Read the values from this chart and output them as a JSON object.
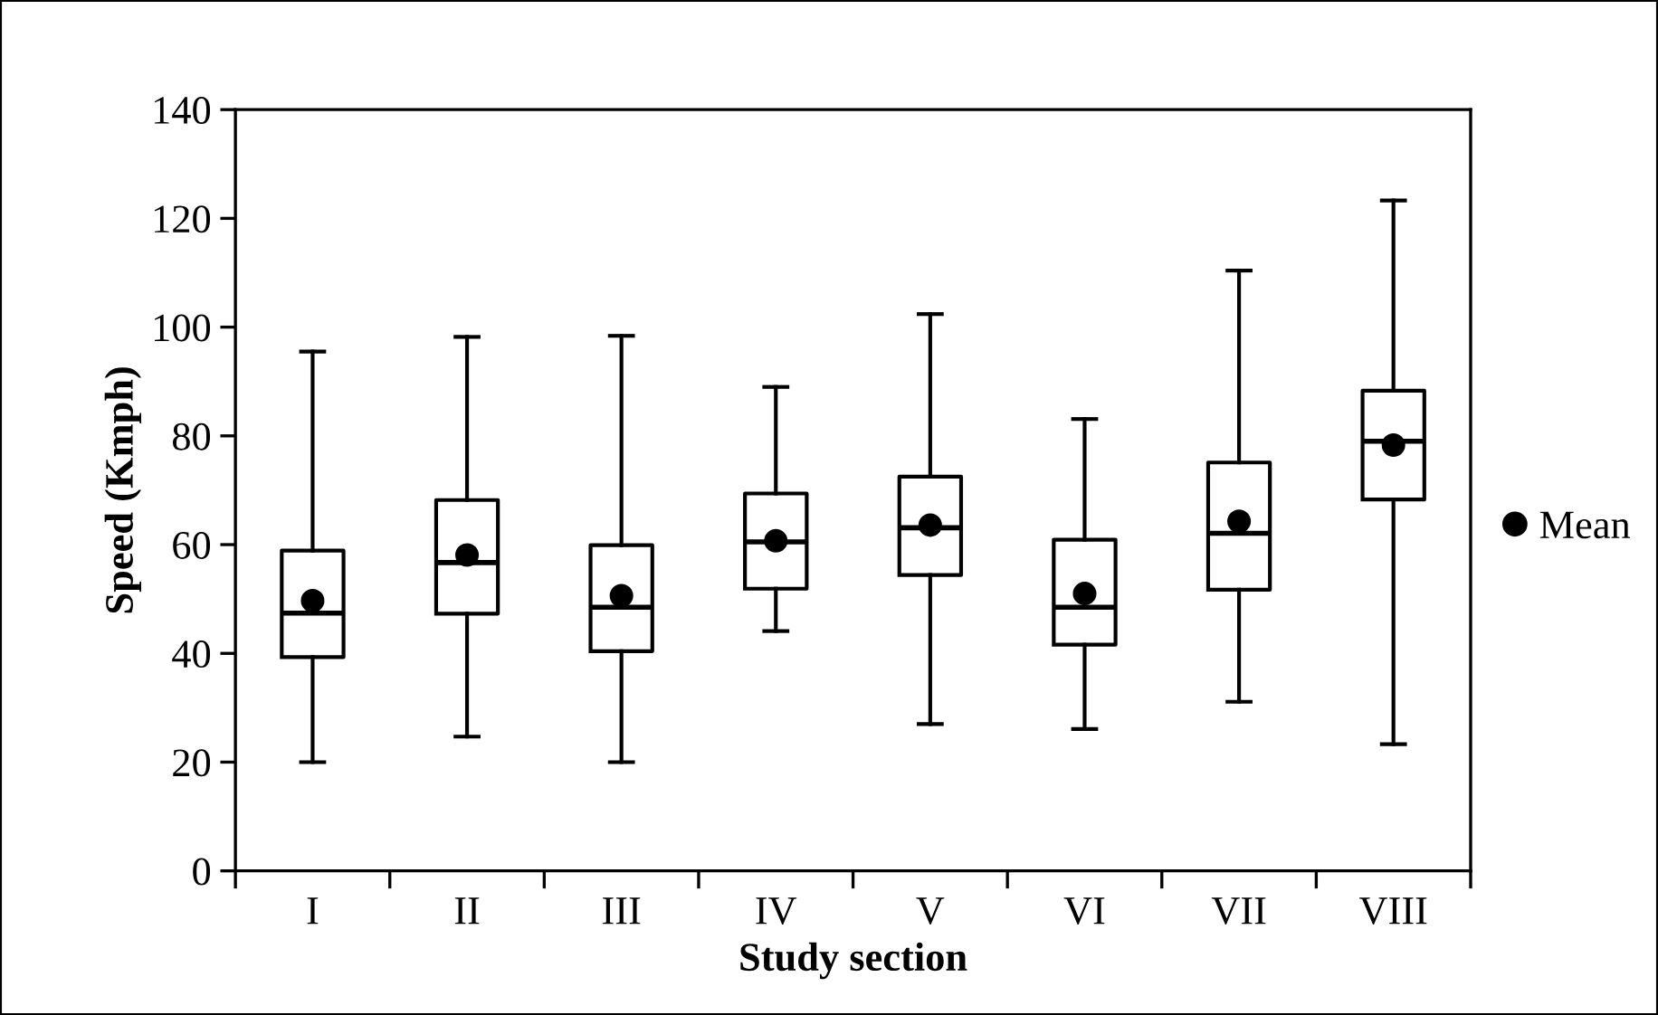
{
  "chart_data": {
    "type": "box",
    "xlabel": "Study section",
    "ylabel": "Speed (Kmph)",
    "categories": [
      "I",
      "II",
      "III",
      "IV",
      "V",
      "VI",
      "VII",
      "VIII"
    ],
    "boxes": [
      {
        "low": 20.0,
        "q1": 39.3,
        "median": 47.4,
        "q3": 58.9,
        "high": 95.5
      },
      {
        "low": 24.7,
        "q1": 47.3,
        "median": 56.7,
        "q3": 68.2,
        "high": 98.2
      },
      {
        "low": 20.0,
        "q1": 40.4,
        "median": 48.5,
        "q3": 59.9,
        "high": 98.4
      },
      {
        "low": 44.1,
        "q1": 51.9,
        "median": 60.5,
        "q3": 69.4,
        "high": 89.0
      },
      {
        "low": 27.0,
        "q1": 54.4,
        "median": 63.1,
        "q3": 72.5,
        "high": 102.4
      },
      {
        "low": 26.1,
        "q1": 41.6,
        "median": 48.5,
        "q3": 60.9,
        "high": 83.1
      },
      {
        "low": 31.1,
        "q1": 51.7,
        "median": 62.1,
        "q3": 75.1,
        "high": 110.4
      },
      {
        "low": 23.3,
        "q1": 68.3,
        "median": 79.0,
        "q3": 88.3,
        "high": 123.3
      }
    ],
    "series": [
      {
        "name": "Mean",
        "type": "scatter",
        "color": "#000000",
        "x": [
          "I",
          "II",
          "III",
          "IV",
          "V",
          "VI",
          "VII",
          "VIII"
        ],
        "values": [
          49.7,
          58.1,
          50.6,
          60.7,
          63.6,
          51.0,
          64.3,
          78.3
        ]
      }
    ],
    "marker": "circle",
    "legend": "right",
    "ylim": [
      0,
      140
    ],
    "yticks": [
      0,
      20,
      40,
      60,
      80,
      100,
      120,
      140
    ],
    "grid": false
  }
}
